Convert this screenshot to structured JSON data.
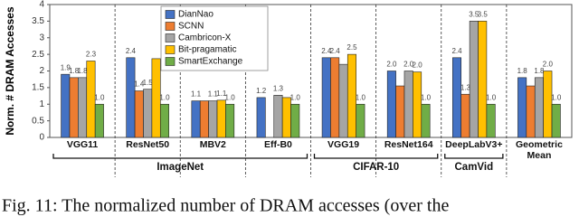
{
  "chart_data": {
    "type": "bar",
    "ylabel": "Norm. # DRAM Accesses",
    "categories": [
      "VGG11",
      "ResNet50",
      "MBV2",
      "Eff-B0",
      "VGG19",
      "ResNet164",
      "DeepLabV3+",
      "Geometric Mean"
    ],
    "groups": [
      "ImageNet",
      "CIFAR-10",
      "CamVid"
    ],
    "series": [
      {
        "name": "DianNao",
        "color": "#4472c4",
        "values": [
          1.9,
          2.4,
          1.1,
          1.2,
          2.4,
          2.0,
          2.4,
          1.8
        ],
        "value_labels": [
          "1.9",
          "2.4",
          "1.1",
          "1.2",
          "2.4",
          "2.0",
          "2.4",
          "1.8"
        ]
      },
      {
        "name": "SCNN",
        "color": "#ed7d31",
        "values": [
          1.8,
          1.4,
          1.1,
          null,
          2.4,
          1.55,
          1.3,
          1.55
        ],
        "value_labels": [
          "1.8",
          "1.4",
          null,
          null,
          "2.4",
          null,
          "1.3",
          null
        ]
      },
      {
        "name": "Cambricon-X",
        "color": "#a5a5a5",
        "values": [
          1.8,
          1.45,
          1.1,
          1.27,
          2.2,
          2.0,
          3.5,
          1.8
        ],
        "value_labels": [
          "1.8",
          "1.5",
          "1.1",
          "1.3",
          null,
          "2.0",
          "3.5",
          "1.8"
        ]
      },
      {
        "name": "Bit-pragamatic",
        "color": "#ffc000",
        "values": [
          2.3,
          2.37,
          1.12,
          1.2,
          2.5,
          1.97,
          3.5,
          2.0
        ],
        "value_labels": [
          "2.3",
          null,
          "1.1",
          null,
          "2.5",
          "2.0",
          "3.5",
          "2.0"
        ]
      },
      {
        "name": "SmartExchange",
        "color": "#70ad47",
        "values": [
          1.0,
          1.0,
          1.0,
          1.0,
          1.0,
          1.0,
          1.0,
          1.0
        ],
        "value_labels": [
          "1.0",
          "1.0",
          "1.0",
          "1.0",
          "1.0",
          "1.0",
          "1.0",
          "1.0"
        ]
      }
    ],
    "ylim": [
      0,
      4
    ],
    "yticks": [
      0,
      0.5,
      1,
      1.5,
      2,
      2.5,
      3,
      3.5,
      4
    ],
    "legend": "upper-left",
    "caption": "Fig. 11: The normalized number of DRAM accesses (over the"
  }
}
